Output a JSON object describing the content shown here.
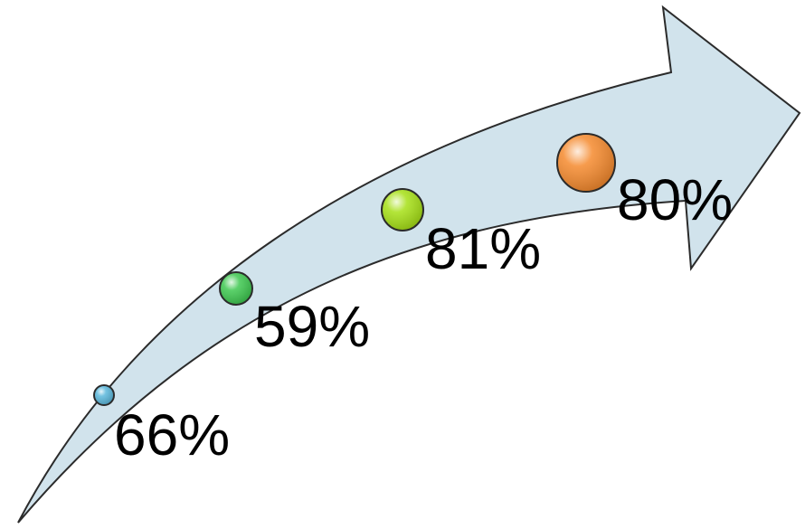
{
  "diagram": {
    "arrow": {
      "fill": "#d1e3ec",
      "stroke": "#2b2b2b"
    },
    "milestones": [
      {
        "label": "66%",
        "color": "#5bb8dc"
      },
      {
        "label": "59%",
        "color": "#3ec850"
      },
      {
        "label": "81%",
        "color": "#a6e016"
      },
      {
        "label": "80%",
        "color": "#f58a2e"
      }
    ]
  }
}
